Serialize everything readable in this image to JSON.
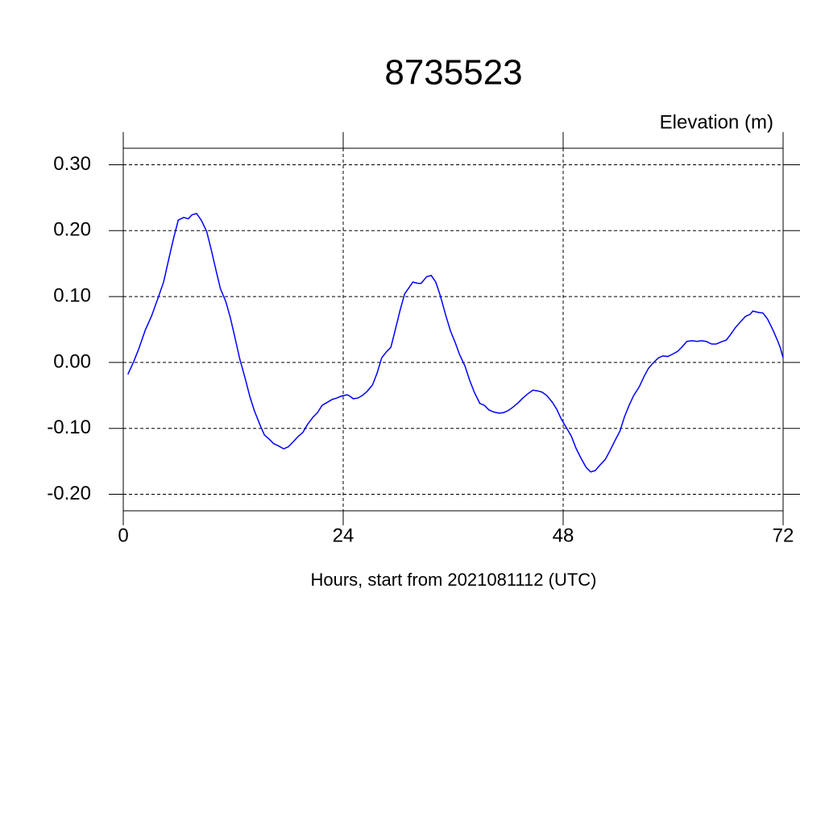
{
  "chart_data": {
    "type": "line",
    "title": "8735523",
    "y_label": "Elevation (m)",
    "x_label": "Hours, start from 2021081112 (UTC)",
    "xlim": [
      0,
      72
    ],
    "xticks": [
      0,
      24,
      48,
      72
    ],
    "ylim": [
      -0.225,
      0.325
    ],
    "yticks": [
      {
        "value": -0.2,
        "label": "-0.20"
      },
      {
        "value": -0.1,
        "label": "-0.10"
      },
      {
        "value": 0,
        "label": "0.00"
      },
      {
        "value": 0.1,
        "label": "0.10"
      },
      {
        "value": 0.2,
        "label": "0.20"
      },
      {
        "value": 0.3,
        "label": "0.30"
      }
    ],
    "grid": true,
    "series": [
      {
        "color": "#0000ff",
        "x": [
          0.5,
          1.1,
          1.7,
          2.4,
          3.1,
          3.8,
          4.4,
          5.0,
          5.5,
          6.0,
          6.6,
          7.1,
          7.5,
          8.0,
          8.5,
          9.1,
          9.6,
          10.1,
          10.6,
          11.2,
          11.7,
          12.2,
          12.7,
          13.3,
          13.8,
          14.3,
          14.9,
          15.4,
          15.9,
          16.4,
          17.0,
          17.5,
          18.0,
          18.5,
          19.1,
          19.6,
          20.1,
          20.7,
          21.2,
          21.7,
          22.2,
          22.8,
          23.3,
          23.8,
          24.4,
          24.6,
          25.1,
          25.6,
          26.1,
          26.6,
          27.2,
          27.7,
          28.2,
          28.7,
          29.2,
          29.6,
          30.2,
          30.7,
          31.2,
          31.6,
          32.2,
          32.5,
          33.1,
          33.6,
          34.1,
          34.6,
          35.2,
          35.7,
          36.2,
          36.7,
          37.3,
          37.8,
          38.3,
          38.9,
          39.4,
          39.9,
          40.4,
          41.0,
          41.5,
          42.0,
          42.5,
          43.1,
          43.6,
          44.1,
          44.7,
          45.2,
          45.7,
          46.2,
          46.8,
          47.3,
          47.8,
          48.4,
          48.9,
          49.4,
          49.9,
          50.5,
          51.0,
          51.5,
          52.0,
          52.6,
          53.1,
          53.6,
          54.2,
          54.7,
          55.2,
          55.7,
          56.3,
          56.8,
          57.3,
          57.8,
          58.4,
          58.9,
          59.4,
          60.0,
          60.5,
          61.0,
          61.5,
          62.1,
          62.6,
          63.1,
          63.6,
          64.2,
          64.7,
          65.2,
          65.8,
          66.3,
          66.8,
          67.3,
          67.9,
          68.4,
          68.7,
          69.3,
          69.8,
          70.3,
          70.9,
          71.4,
          71.7,
          72.0
        ],
        "values": [
          -0.018,
          0,
          0.021,
          0.049,
          0.071,
          0.098,
          0.122,
          0.159,
          0.189,
          0.216,
          0.22,
          0.218,
          0.224,
          0.226,
          0.216,
          0.199,
          0.171,
          0.141,
          0.112,
          0.092,
          0.067,
          0.037,
          0.006,
          -0.024,
          -0.051,
          -0.073,
          -0.094,
          -0.11,
          -0.116,
          -0.123,
          -0.127,
          -0.131,
          -0.128,
          -0.121,
          -0.112,
          -0.106,
          -0.094,
          -0.083,
          -0.076,
          -0.065,
          -0.061,
          -0.056,
          -0.054,
          -0.051,
          -0.049,
          -0.05,
          -0.055,
          -0.054,
          -0.05,
          -0.044,
          -0.034,
          -0.016,
          0.007,
          0.016,
          0.023,
          0.045,
          0.079,
          0.104,
          0.114,
          0.122,
          0.12,
          0.12,
          0.13,
          0.132,
          0.122,
          0.101,
          0.071,
          0.048,
          0.031,
          0.012,
          -0.006,
          -0.027,
          -0.045,
          -0.062,
          -0.065,
          -0.072,
          -0.075,
          -0.077,
          -0.076,
          -0.073,
          -0.068,
          -0.061,
          -0.054,
          -0.048,
          -0.042,
          -0.043,
          -0.045,
          -0.05,
          -0.06,
          -0.071,
          -0.086,
          -0.1,
          -0.112,
          -0.13,
          -0.144,
          -0.159,
          -0.166,
          -0.164,
          -0.156,
          -0.147,
          -0.134,
          -0.12,
          -0.104,
          -0.082,
          -0.065,
          -0.05,
          -0.037,
          -0.022,
          -0.009,
          -0.001,
          0.007,
          0.01,
          0.009,
          0.013,
          0.017,
          0.024,
          0.032,
          0.033,
          0.032,
          0.033,
          0.032,
          0.028,
          0.028,
          0.031,
          0.034,
          0.043,
          0.053,
          0.061,
          0.07,
          0.073,
          0.078,
          0.076,
          0.075,
          0.066,
          0.049,
          0.033,
          0.022,
          0.007
        ]
      }
    ]
  }
}
